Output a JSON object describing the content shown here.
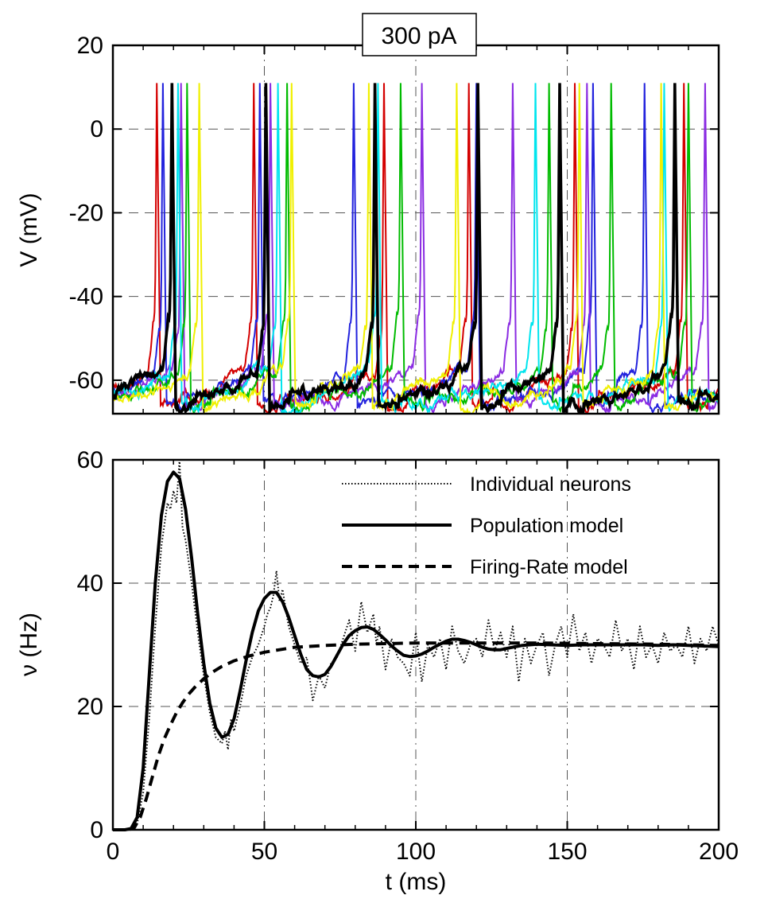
{
  "chart_data": [
    {
      "type": "line",
      "annotation": "300 pA",
      "ylabel": "V (mV)",
      "xlabel": "",
      "xlim": [
        0,
        200
      ],
      "ylim": [
        -68,
        20
      ],
      "xticks": [
        0,
        50,
        100,
        150,
        200
      ],
      "yticks": [
        20,
        0,
        -20,
        -40,
        -60
      ],
      "ytick_labels": [
        "20",
        "0",
        "-20",
        "-40",
        "-60"
      ],
      "grid": true,
      "series": [
        {
          "color": "#d40000",
          "lineWidth": 2,
          "spikes": [
            14.5,
            46.5,
            89.5,
            117.5,
            152.5,
            188.5
          ]
        },
        {
          "color": "#2222dd",
          "lineWidth": 2,
          "spikes": [
            16.5,
            48.5,
            79.5,
            120.0,
            158.5,
            175.5
          ]
        },
        {
          "color": "#8a2be2",
          "lineWidth": 2,
          "spikes": [
            22.5,
            52.0,
            102.0,
            132.0,
            156.5,
            195.5
          ]
        },
        {
          "color": "#00bb00",
          "lineWidth": 2,
          "spikes": [
            24.5,
            57.5,
            95.0,
            144.0,
            164.5,
            190.0
          ]
        },
        {
          "color": "#00e5ee",
          "lineWidth": 2,
          "spikes": [
            21.5,
            54.5,
            87.5,
            139.5,
            182.0
          ]
        },
        {
          "color": "#f0f000",
          "lineWidth": 2,
          "spikes": [
            28.5,
            59.0,
            84.5,
            113.5,
            154.0,
            181.0
          ]
        },
        {
          "color": "#000000",
          "lineWidth": 3.6,
          "spikes": [
            19.5,
            50.5,
            86.5,
            120.5,
            147.5,
            185.5
          ]
        }
      ]
    },
    {
      "type": "line",
      "xlabel": "t (ms)",
      "ylabel": "ν (Hz)",
      "xlim": [
        0,
        200
      ],
      "ylim": [
        0,
        60
      ],
      "xticks": [
        0,
        50,
        100,
        150,
        200
      ],
      "yticks": [
        0,
        20,
        40,
        60
      ],
      "grid": true,
      "legend_position": "top-right",
      "legend": [
        "Individual neurons",
        "Population model",
        "Firing-Rate model"
      ],
      "series": [
        {
          "name": "Individual neurons",
          "style": "dotted",
          "x": [
            0,
            5,
            8,
            10,
            12,
            14,
            16,
            18,
            19,
            20,
            21,
            22,
            23,
            24,
            26,
            28,
            30,
            32,
            34,
            36,
            37,
            38,
            39,
            40,
            42,
            44,
            46,
            48,
            50,
            51,
            52,
            53,
            54,
            55,
            56,
            58,
            60,
            62,
            64,
            66,
            68,
            70,
            72,
            74,
            76,
            78,
            80,
            82,
            84,
            86,
            87,
            88,
            90,
            92,
            94,
            96,
            98,
            100,
            102,
            104,
            106,
            108,
            110,
            112,
            114,
            116,
            118,
            120,
            122,
            124,
            126,
            128,
            130,
            132,
            134,
            136,
            138,
            140,
            142,
            144,
            146,
            148,
            150,
            152,
            154,
            156,
            158,
            160,
            162,
            164,
            166,
            168,
            170,
            172,
            174,
            176,
            178,
            180,
            182,
            184,
            186,
            188,
            190,
            192,
            194,
            196,
            198,
            200
          ],
          "y": [
            0,
            0,
            1,
            6,
            18,
            33,
            46,
            53,
            52,
            55,
            53,
            60,
            49,
            47,
            40,
            32,
            25,
            19,
            15,
            14,
            16,
            13,
            18,
            16,
            20,
            25,
            28,
            30,
            33,
            35,
            36,
            38,
            42,
            37,
            39,
            33,
            30,
            27,
            28,
            21,
            25,
            23,
            27,
            28,
            31,
            34,
            29,
            37,
            32,
            35,
            30,
            33,
            26,
            31,
            28,
            27,
            25,
            32,
            24,
            30,
            28,
            31,
            26,
            33,
            29,
            27,
            30,
            31,
            28,
            34,
            29,
            32,
            28,
            33,
            24,
            31,
            27,
            30,
            32,
            25,
            30,
            33,
            28,
            35,
            29,
            32,
            27,
            31,
            30,
            28,
            34,
            29,
            31,
            26,
            33,
            28,
            30,
            27,
            32,
            29,
            30,
            28,
            33,
            27,
            31,
            29,
            33,
            30
          ]
        },
        {
          "name": "Population model",
          "style": "solid",
          "x": [
            0,
            4,
            6,
            8,
            10,
            12,
            14,
            16,
            18,
            20,
            22,
            24,
            26,
            28,
            30,
            32,
            34,
            36,
            38,
            40,
            42,
            44,
            46,
            48,
            50,
            52,
            54,
            56,
            58,
            60,
            62,
            64,
            66,
            68,
            70,
            72,
            74,
            76,
            78,
            80,
            82,
            84,
            86,
            88,
            90,
            92,
            94,
            96,
            98,
            100,
            102,
            104,
            106,
            108,
            110,
            112,
            114,
            116,
            118,
            120,
            122,
            124,
            126,
            128,
            130,
            135,
            140,
            145,
            150,
            155,
            160,
            165,
            170,
            175,
            180,
            185,
            190,
            195,
            200
          ],
          "y": [
            0,
            0,
            0.2,
            2,
            10,
            25,
            40,
            51,
            56.5,
            58,
            57,
            52,
            44,
            35,
            27,
            20.5,
            16.5,
            15,
            15.5,
            18,
            22.5,
            27.5,
            32,
            35.5,
            37.5,
            38.5,
            38.5,
            37,
            34.5,
            31.5,
            28.5,
            26,
            25,
            24.8,
            25.2,
            26.5,
            28.3,
            30.1,
            31.5,
            32.3,
            32.8,
            32.9,
            32.5,
            31.7,
            30.8,
            29.8,
            29,
            28.3,
            28.1,
            28.2,
            28.5,
            29,
            29.6,
            30.1,
            30.6,
            30.9,
            30.9,
            30.7,
            30.4,
            30,
            29.6,
            29.3,
            29.2,
            29.2,
            29.4,
            29.9,
            30.1,
            30.0,
            29.9,
            30.0,
            30.0,
            30.0,
            30.0,
            30.0,
            29.9,
            30.0,
            29.9,
            29.8,
            29.7
          ]
        },
        {
          "name": "Firing-Rate model",
          "style": "dashed",
          "x": [
            0,
            5,
            7,
            9,
            11,
            13,
            15,
            17,
            19,
            21,
            23,
            25,
            27,
            30,
            33,
            36,
            40,
            45,
            50,
            55,
            60,
            70,
            80,
            90,
            100,
            120,
            140,
            160,
            180,
            200
          ],
          "y": [
            0,
            0,
            0.3,
            2,
            5,
            8.5,
            12,
            14.8,
            17,
            19,
            20.6,
            22,
            23.1,
            24.5,
            25.6,
            26.5,
            27.4,
            28.2,
            28.8,
            29.2,
            29.6,
            29.9,
            30.1,
            30.2,
            30.3,
            30.3,
            30.3,
            30.2,
            30.1,
            29.9
          ]
        }
      ]
    }
  ]
}
